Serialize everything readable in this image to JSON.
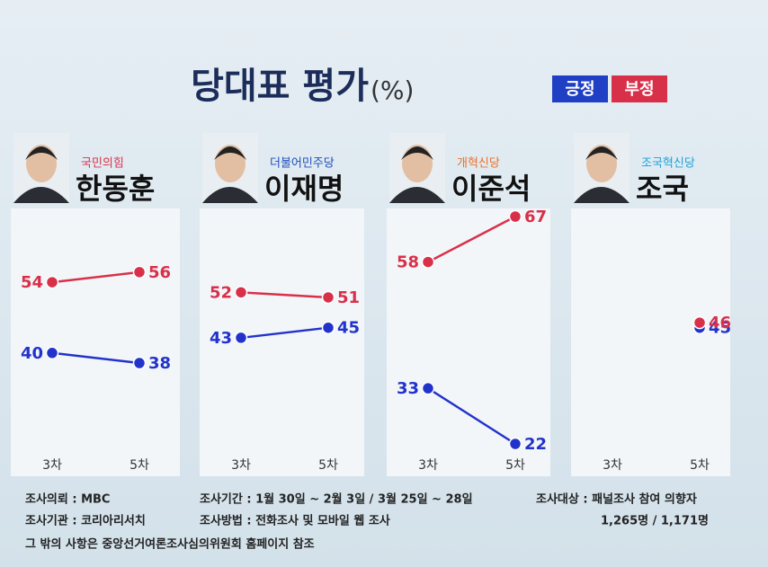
{
  "title": "당대표 평가",
  "unit": "(%)",
  "chart_data": [
    {
      "type": "line",
      "title": "한동훈",
      "subtitle": "국민의힘",
      "subtitle_color": "#d9304a",
      "categories": [
        "3차",
        "5차"
      ],
      "series": [
        {
          "name": "긍정",
          "color": "#2233cc",
          "values": [
            40,
            38
          ]
        },
        {
          "name": "부정",
          "color": "#d9304a",
          "values": [
            54,
            56
          ]
        }
      ]
    },
    {
      "type": "line",
      "title": "이재명",
      "subtitle": "더불어민주당",
      "subtitle_color": "#1d4fb8",
      "categories": [
        "3차",
        "5차"
      ],
      "series": [
        {
          "name": "긍정",
          "color": "#2233cc",
          "values": [
            43,
            45
          ]
        },
        {
          "name": "부정",
          "color": "#d9304a",
          "values": [
            52,
            51
          ]
        }
      ]
    },
    {
      "type": "line",
      "title": "이준석",
      "subtitle": "개혁신당",
      "subtitle_color": "#e8712a",
      "categories": [
        "3차",
        "5차"
      ],
      "series": [
        {
          "name": "긍정",
          "color": "#2233cc",
          "values": [
            33,
            22
          ]
        },
        {
          "name": "부정",
          "color": "#d9304a",
          "values": [
            58,
            67
          ]
        }
      ]
    },
    {
      "type": "line",
      "title": "조국",
      "subtitle": "조국혁신당",
      "subtitle_color": "#1aa3d9",
      "categories": [
        "3차",
        "5차"
      ],
      "series": [
        {
          "name": "긍정",
          "color": "#2233cc",
          "values": [
            null,
            45
          ]
        },
        {
          "name": "부정",
          "color": "#d9304a",
          "values": [
            null,
            46
          ]
        }
      ]
    }
  ],
  "notes": [
    "조사의뢰 : MBC",
    "조사기관 : 코리아리서치",
    "조사기간 : 1월 30일 ~ 2월 3일 / 3월 25일 ~ 28일",
    "조사방법 : 전화조사 및 모바일 웹 조사",
    "조사대상 : 패널조사 참여 의향자",
    "1,265명 / 1,171명",
    "그 밖의 사항은 중앙선거여론조사심의위원회 홈페이지 참조"
  ]
}
